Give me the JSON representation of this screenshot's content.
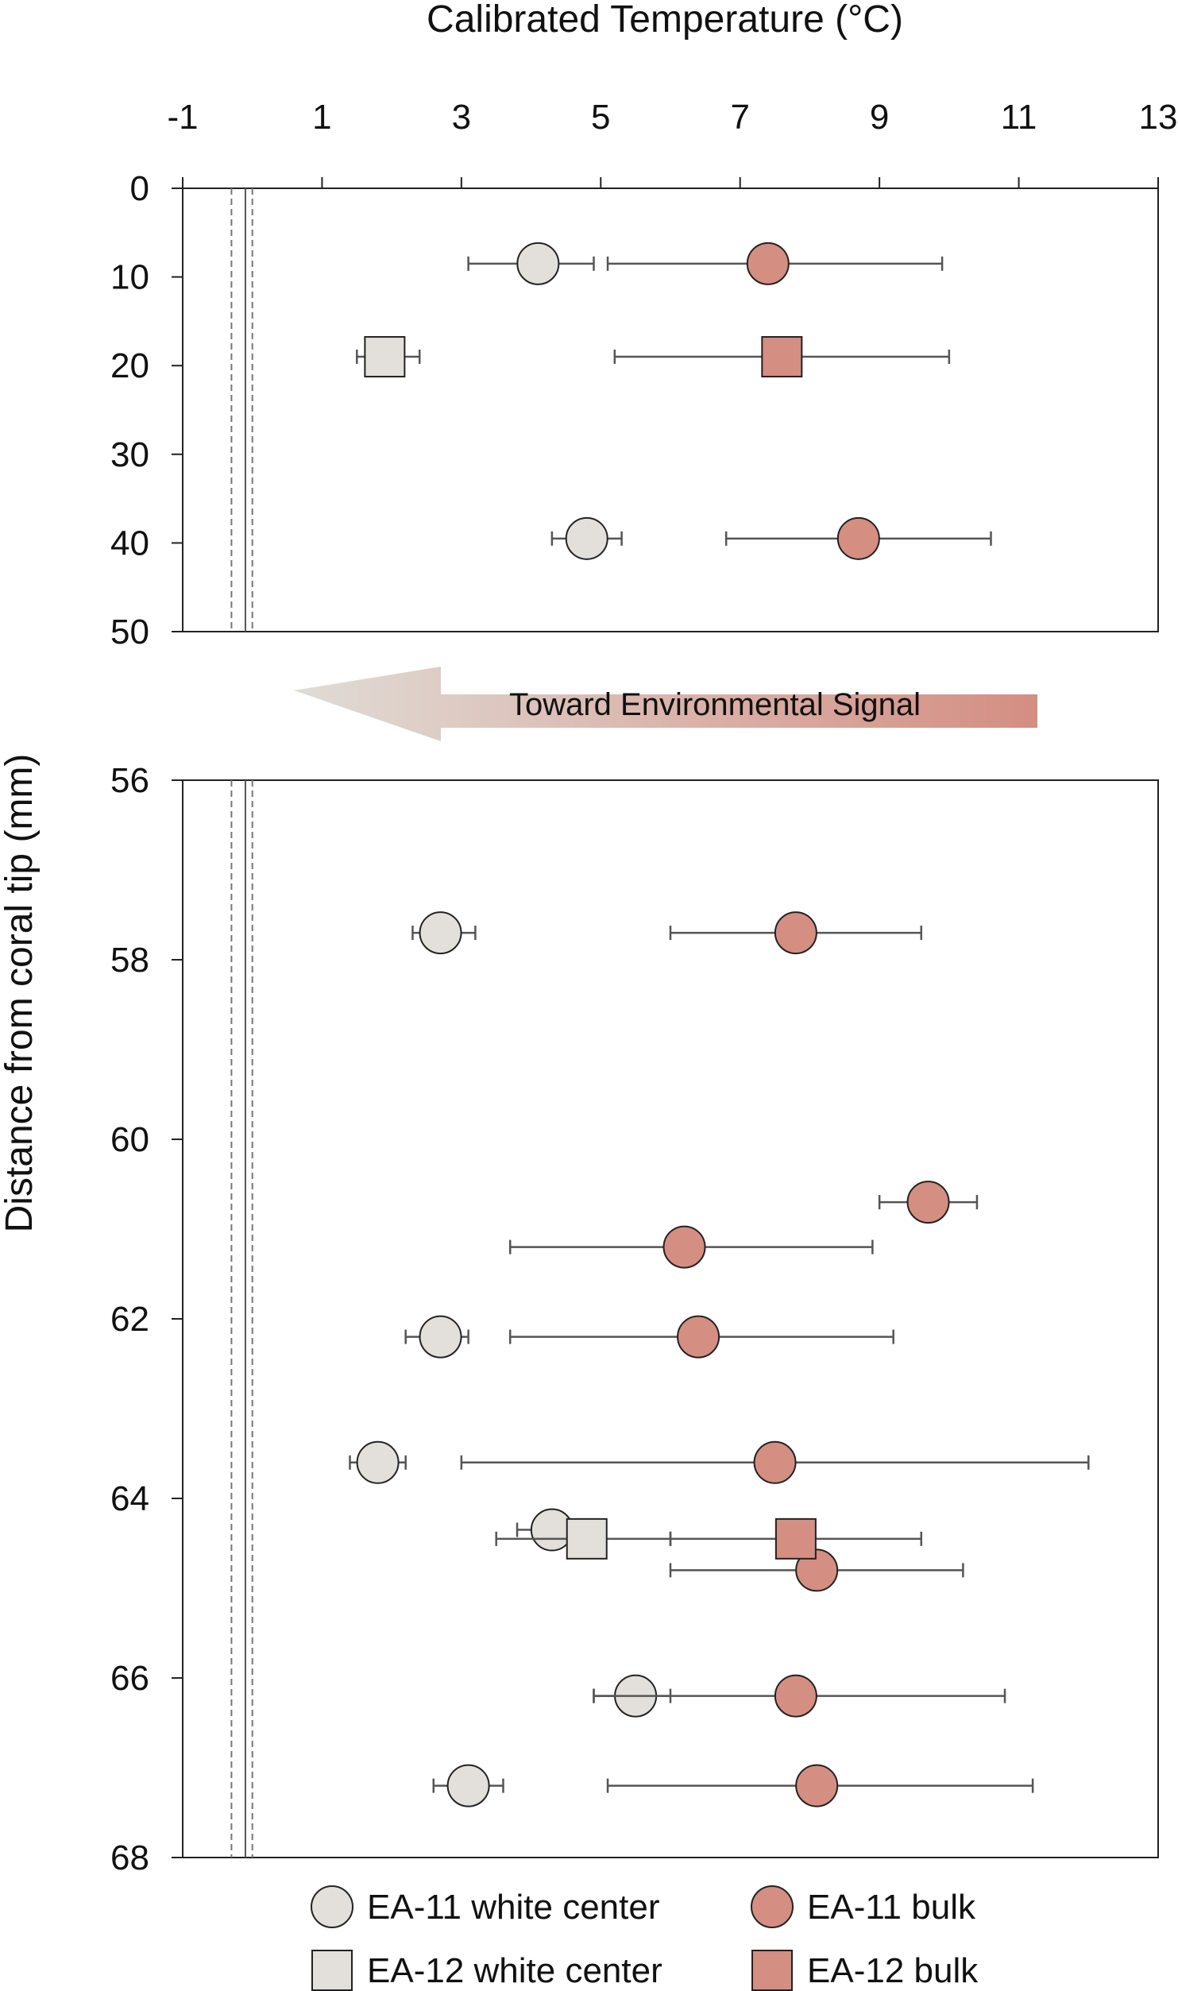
{
  "chart_data": {
    "type": "scatter",
    "xlabel": "Calibrated Temperature (°C)",
    "ylabel": "Distance from coral tip (mm)",
    "xlim": [
      -1,
      13
    ],
    "x_ticks": [
      "-1",
      "1",
      "3",
      "5",
      "7",
      "9",
      "11",
      "13"
    ],
    "reference_lines": {
      "solid": -0.1,
      "dashed": [
        -0.3,
        0.0
      ]
    },
    "panels": [
      {
        "id": "top",
        "ylim": [
          0,
          50
        ],
        "y_ticks": [
          "0",
          "10",
          "20",
          "30",
          "40",
          "50"
        ]
      },
      {
        "id": "bottom",
        "ylim": [
          56,
          68
        ],
        "y_ticks": [
          "56",
          "58",
          "60",
          "62",
          "64",
          "66",
          "68"
        ]
      }
    ],
    "arrow": {
      "label": "Toward Environmental Signal",
      "color_start": "#e0dcd6",
      "color_end": "#d48e82"
    },
    "series": [
      {
        "name": "EA-11 white center",
        "marker": "circle",
        "color": "#e3e0dc",
        "points": [
          {
            "panel": "top",
            "y": 8.5,
            "x": 4.1,
            "xmin": 3.1,
            "xmax": 4.9
          },
          {
            "panel": "top",
            "y": 39.5,
            "x": 4.8,
            "xmin": 4.3,
            "xmax": 5.3
          },
          {
            "panel": "bottom",
            "y": 57.7,
            "x": 2.7,
            "xmin": 2.3,
            "xmax": 3.2
          },
          {
            "panel": "bottom",
            "y": 62.2,
            "x": 2.7,
            "xmin": 2.2,
            "xmax": 3.1
          },
          {
            "panel": "bottom",
            "y": 63.6,
            "x": 1.8,
            "xmin": 1.4,
            "xmax": 2.2
          },
          {
            "panel": "bottom",
            "y": 64.35,
            "x": 4.3,
            "xmin": 3.8,
            "xmax": 4.9
          },
          {
            "panel": "bottom",
            "y": 66.2,
            "x": 5.5,
            "xmin": 4.9,
            "xmax": 6.0
          },
          {
            "panel": "bottom",
            "y": 67.2,
            "x": 3.1,
            "xmin": 2.6,
            "xmax": 3.6
          }
        ]
      },
      {
        "name": "EA-11 bulk",
        "marker": "circle",
        "color": "#d48e82",
        "points": [
          {
            "panel": "top",
            "y": 8.5,
            "x": 7.4,
            "xmin": 5.1,
            "xmax": 9.9
          },
          {
            "panel": "top",
            "y": 39.5,
            "x": 8.7,
            "xmin": 6.8,
            "xmax": 10.6
          },
          {
            "panel": "bottom",
            "y": 57.7,
            "x": 7.8,
            "xmin": 6.0,
            "xmax": 9.6
          },
          {
            "panel": "bottom",
            "y": 60.7,
            "x": 9.7,
            "xmin": 9.0,
            "xmax": 10.4
          },
          {
            "panel": "bottom",
            "y": 61.2,
            "x": 6.2,
            "xmin": 3.7,
            "xmax": 8.9
          },
          {
            "panel": "bottom",
            "y": 62.2,
            "x": 6.4,
            "xmin": 3.7,
            "xmax": 9.2
          },
          {
            "panel": "bottom",
            "y": 63.6,
            "x": 7.5,
            "xmin": 3.0,
            "xmax": 12.0
          },
          {
            "panel": "bottom",
            "y": 64.8,
            "x": 8.1,
            "xmin": 6.0,
            "xmax": 10.2
          },
          {
            "panel": "bottom",
            "y": 66.2,
            "x": 7.8,
            "xmin": 4.9,
            "xmax": 10.8
          },
          {
            "panel": "bottom",
            "y": 67.2,
            "x": 8.1,
            "xmin": 5.1,
            "xmax": 11.2
          }
        ]
      },
      {
        "name": "EA-12 white center",
        "marker": "square",
        "color": "#e3e0dc",
        "points": [
          {
            "panel": "top",
            "y": 19,
            "x": 1.9,
            "xmin": 1.5,
            "xmax": 2.4
          },
          {
            "panel": "bottom",
            "y": 64.45,
            "x": 4.8,
            "xmin": 3.5,
            "xmax": 6.0
          }
        ]
      },
      {
        "name": "EA-12 bulk",
        "marker": "square",
        "color": "#d48e82",
        "points": [
          {
            "panel": "top",
            "y": 19,
            "x": 7.6,
            "xmin": 5.2,
            "xmax": 10.0
          },
          {
            "panel": "bottom",
            "y": 64.45,
            "x": 7.8,
            "xmin": 6.0,
            "xmax": 9.6
          }
        ]
      }
    ]
  }
}
